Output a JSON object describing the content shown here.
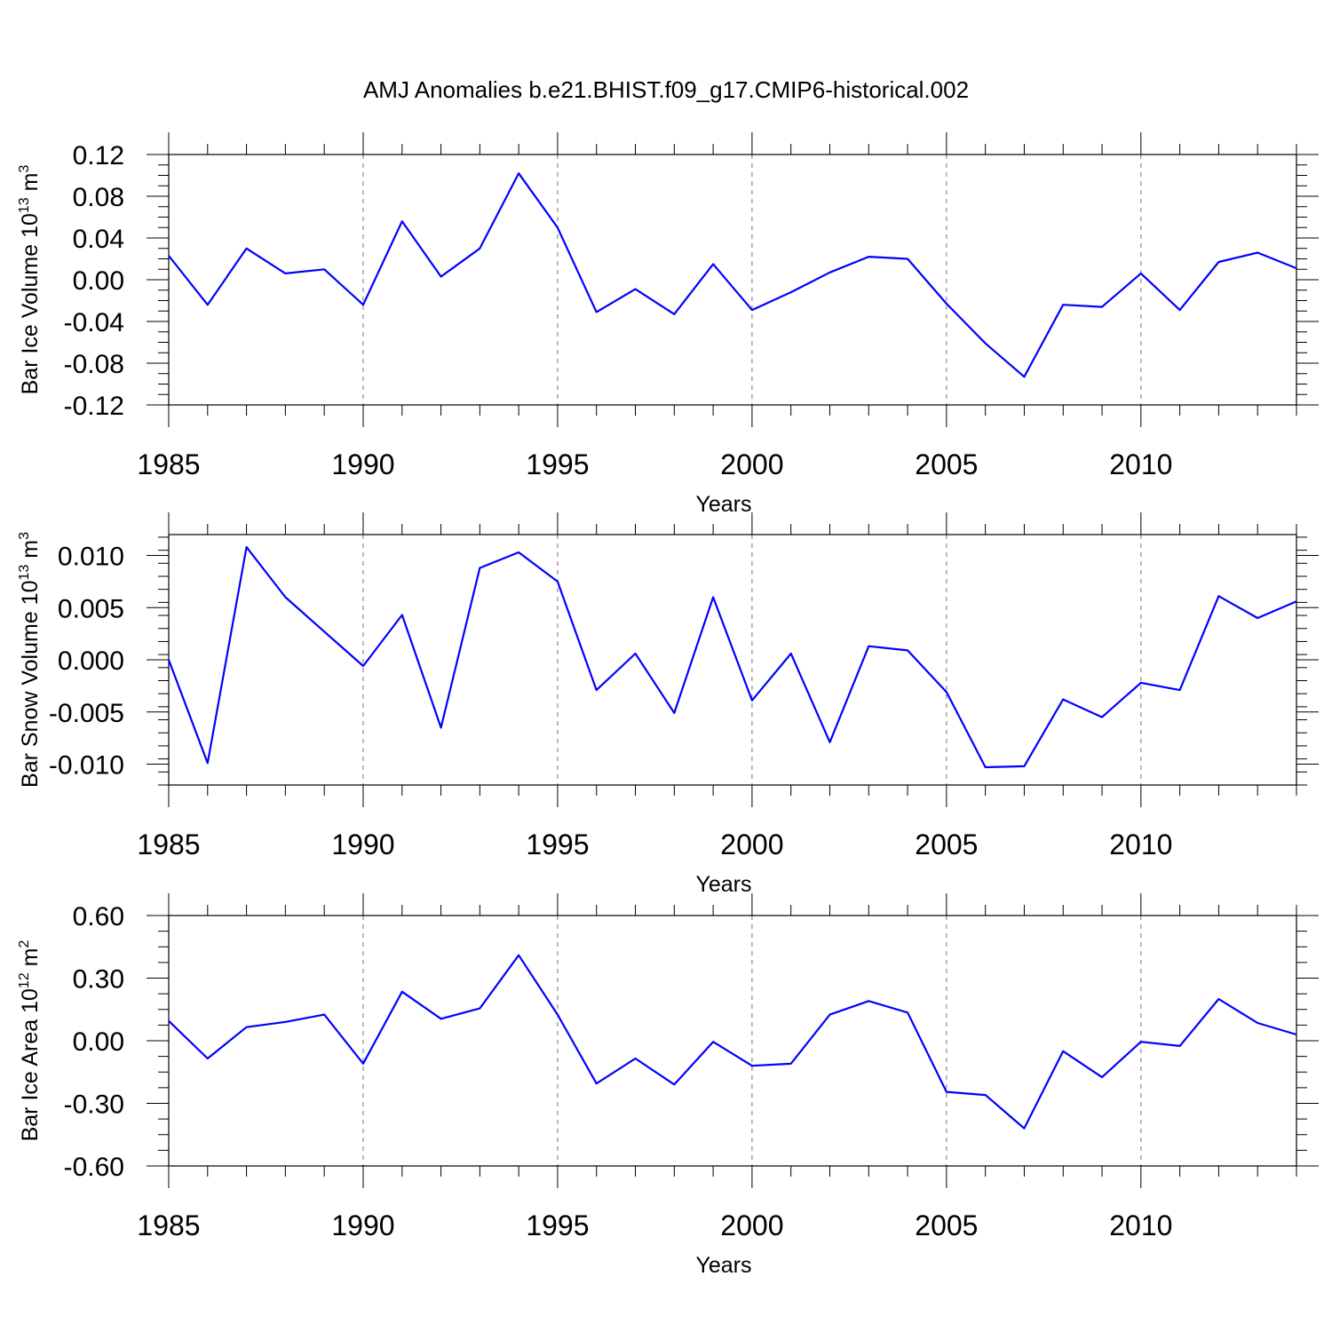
{
  "title": "AMJ Anomalies b.e21.BHIST.f09_g17.CMIP6-historical.002",
  "colors": {
    "line": "#0000ff",
    "axes": "#000000",
    "grid": "#777777"
  },
  "chart_data": [
    {
      "type": "line",
      "ylabel": {
        "main": "Bar Ice Volume 10",
        "exp": "13",
        "unit": " m",
        "unit_exp": "3"
      },
      "xlabel": "Years",
      "xlim": [
        1985,
        2014
      ],
      "ylim": [
        -0.12,
        0.12
      ],
      "x_ticks": [
        1985,
        1990,
        1995,
        2000,
        2005,
        2010
      ],
      "y_ticks": [
        "-0.12",
        "-0.08",
        "-0.04",
        "0.00",
        "0.04",
        "0.08",
        "0.12"
      ],
      "grid": "vertical dashed",
      "series": [
        {
          "name": "Bar Ice Volume",
          "x": [
            1985,
            1986,
            1987,
            1988,
            1989,
            1990,
            1991,
            1992,
            1993,
            1994,
            1995,
            1996,
            1997,
            1998,
            1999,
            2000,
            2001,
            2002,
            2003,
            2004,
            2005,
            2006,
            2007,
            2008,
            2009,
            2010,
            2011,
            2012,
            2013,
            2014
          ],
          "values": [
            0.023,
            -0.024,
            0.03,
            0.006,
            0.01,
            -0.024,
            0.056,
            0.003,
            0.03,
            0.102,
            0.05,
            -0.031,
            -0.009,
            -0.033,
            0.015,
            -0.029,
            -0.012,
            0.007,
            0.022,
            0.02,
            -0.023,
            -0.061,
            -0.093,
            -0.024,
            -0.026,
            0.006,
            -0.029,
            0.017,
            0.026,
            0.011
          ]
        }
      ]
    },
    {
      "type": "line",
      "ylabel": {
        "main": "Bar Snow Volume 10",
        "exp": "13",
        "unit": " m",
        "unit_exp": "3"
      },
      "xlabel": "Years",
      "xlim": [
        1985,
        2014
      ],
      "ylim": [
        -0.012,
        0.012
      ],
      "x_ticks": [
        1985,
        1990,
        1995,
        2000,
        2005,
        2010
      ],
      "y_ticks": [
        "-0.010",
        "-0.005",
        "0.000",
        "0.005",
        "0.010"
      ],
      "grid": "vertical dashed",
      "series": [
        {
          "name": "Bar Snow Volume",
          "x": [
            1985,
            1986,
            1987,
            1988,
            1989,
            1990,
            1991,
            1992,
            1993,
            1994,
            1995,
            1996,
            1997,
            1998,
            1999,
            2000,
            2001,
            2002,
            2003,
            2004,
            2005,
            2006,
            2007,
            2008,
            2009,
            2010,
            2011,
            2012,
            2013,
            2014
          ],
          "values": [
            0.0,
            -0.0099,
            0.0108,
            0.006,
            0.0027,
            -0.0006,
            0.0043,
            -0.0065,
            0.0088,
            0.0103,
            0.0075,
            -0.0029,
            0.0006,
            -0.0051,
            0.006,
            -0.0039,
            0.0006,
            -0.0079,
            0.0013,
            0.0009,
            -0.0031,
            -0.0103,
            -0.0102,
            -0.0038,
            -0.0055,
            -0.0022,
            -0.0029,
            0.0061,
            0.004,
            0.0056
          ]
        }
      ]
    },
    {
      "type": "line",
      "ylabel": {
        "main": "Bar Ice Area 10",
        "exp": "12",
        "unit": " m",
        "unit_exp": "2"
      },
      "xlabel": "Years",
      "xlim": [
        1985,
        2014
      ],
      "ylim": [
        -0.6,
        0.6
      ],
      "x_ticks": [
        1985,
        1990,
        1995,
        2000,
        2005,
        2010
      ],
      "y_ticks": [
        "-0.60",
        "-0.30",
        "0.00",
        "0.30",
        "0.60"
      ],
      "grid": "vertical dashed",
      "series": [
        {
          "name": "Bar Ice Area",
          "x": [
            1985,
            1986,
            1987,
            1988,
            1989,
            1990,
            1991,
            1992,
            1993,
            1994,
            1995,
            1996,
            1997,
            1998,
            1999,
            2000,
            2001,
            2002,
            2003,
            2004,
            2005,
            2006,
            2007,
            2008,
            2009,
            2010,
            2011,
            2012,
            2013,
            2014
          ],
          "values": [
            0.095,
            -0.085,
            0.065,
            0.09,
            0.125,
            -0.11,
            0.235,
            0.105,
            0.155,
            0.41,
            0.125,
            -0.205,
            -0.085,
            -0.21,
            -0.005,
            -0.12,
            -0.11,
            0.125,
            0.19,
            0.135,
            -0.245,
            -0.26,
            -0.42,
            -0.05,
            -0.175,
            -0.005,
            -0.025,
            0.2,
            0.085,
            0.03
          ]
        }
      ]
    }
  ]
}
